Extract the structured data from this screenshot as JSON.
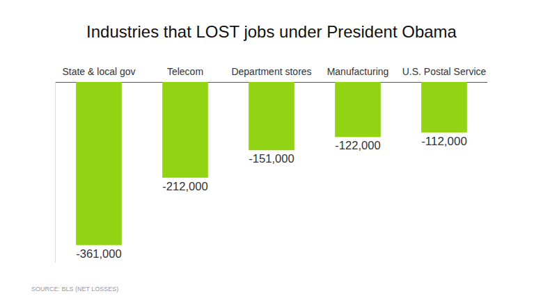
{
  "chart_data": {
    "type": "bar",
    "title": "Industries that LOST jobs under President Obama",
    "categories": [
      "State & local gov",
      "Telecom",
      "Department stores",
      "Manufacturing",
      "U.S. Postal Service"
    ],
    "values": [
      -361000,
      -212000,
      -151000,
      -122000,
      -112000
    ],
    "value_labels": [
      "-361,000",
      "-212,000",
      "-151,000",
      "-122,000",
      "-112,000"
    ],
    "color": "#92d313",
    "ylim": [
      -400000,
      0
    ],
    "yticks": [
      0
    ],
    "grid": false,
    "data_labels": true,
    "tick_labels": "x",
    "annotations": [
      "SOURCE: BLS (NET LOSSES)"
    ]
  }
}
